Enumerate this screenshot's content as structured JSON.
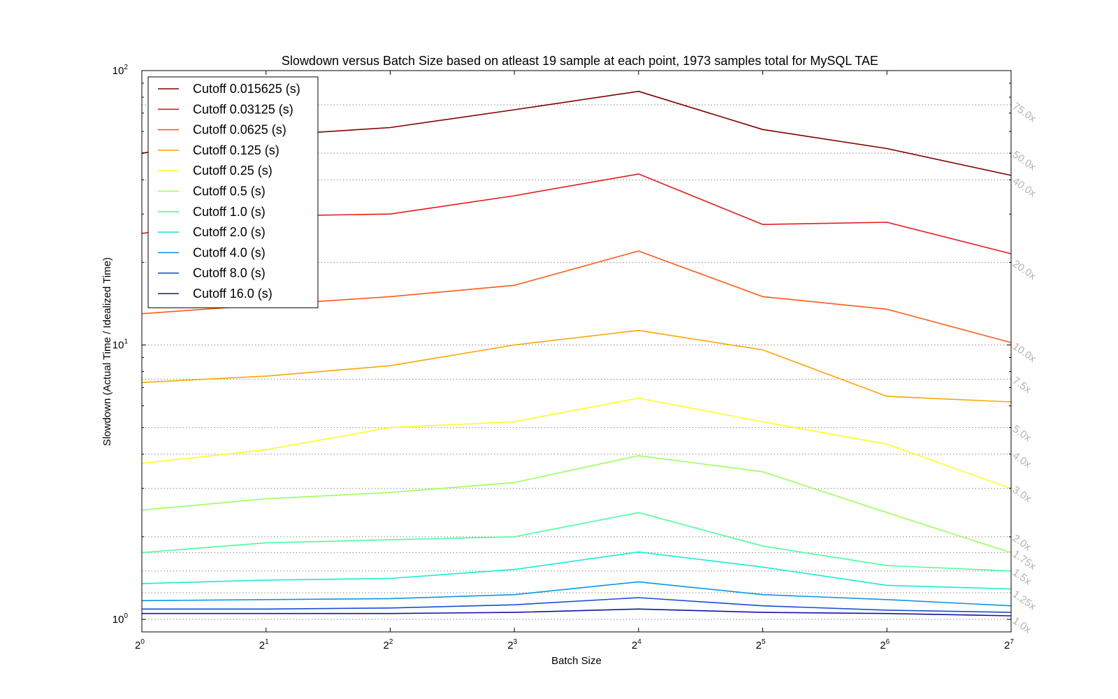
{
  "chart_data": {
    "type": "line",
    "title": "Slowdown versus Batch Size based on atleast 19 sample at each point, 1973 samples total for MySQL TAE",
    "xlabel": "Batch Size",
    "ylabel": "Slowdown (Actual Time / Idealized Time)",
    "x_scale": "log2",
    "y_scale": "log10",
    "xlim": [
      1,
      128
    ],
    "ylim": [
      0.9,
      100
    ],
    "x": [
      1,
      2,
      4,
      8,
      16,
      32,
      64,
      128
    ],
    "x_ticks": [
      {
        "value": 1,
        "base": "2",
        "exp": "0"
      },
      {
        "value": 2,
        "base": "2",
        "exp": "1"
      },
      {
        "value": 4,
        "base": "2",
        "exp": "2"
      },
      {
        "value": 8,
        "base": "2",
        "exp": "3"
      },
      {
        "value": 16,
        "base": "2",
        "exp": "4"
      },
      {
        "value": 32,
        "base": "2",
        "exp": "5"
      },
      {
        "value": 64,
        "base": "2",
        "exp": "6"
      },
      {
        "value": 128,
        "base": "2",
        "exp": "7"
      }
    ],
    "y_ticks": [
      {
        "value": 1,
        "base": "10",
        "exp": "0"
      },
      {
        "value": 10,
        "base": "10",
        "exp": "1"
      },
      {
        "value": 100,
        "base": "10",
        "exp": "2"
      }
    ],
    "reference_lines": [
      {
        "value": 75,
        "label": "75.0x"
      },
      {
        "value": 50,
        "label": "50.0x"
      },
      {
        "value": 40,
        "label": "40.0x"
      },
      {
        "value": 20,
        "label": "20.0x"
      },
      {
        "value": 10,
        "label": "10.0x"
      },
      {
        "value": 7.5,
        "label": "7.5x"
      },
      {
        "value": 5,
        "label": "5.0x"
      },
      {
        "value": 4,
        "label": "4.0x"
      },
      {
        "value": 3,
        "label": "3.0x"
      },
      {
        "value": 2,
        "label": "2.0x"
      },
      {
        "value": 1.75,
        "label": "1.75x"
      },
      {
        "value": 1.5,
        "label": "1.5x"
      },
      {
        "value": 1.25,
        "label": "1.25x"
      },
      {
        "value": 1.0,
        "label": "1.0x"
      }
    ],
    "legend_position": "top-left",
    "series": [
      {
        "name": "Cutoff 0.015625 (s)",
        "color": "#800000",
        "values": [
          50,
          58,
          62,
          72,
          84,
          61,
          52,
          41.5
        ]
      },
      {
        "name": "Cutoff 0.03125 (s)",
        "color": "#e41a1a",
        "values": [
          25.5,
          29.5,
          30,
          35,
          42,
          27.5,
          28,
          21.5
        ]
      },
      {
        "name": "Cutoff 0.0625 (s)",
        "color": "#ff5a14",
        "values": [
          13,
          14,
          15,
          16.5,
          22,
          15,
          13.5,
          10.2
        ]
      },
      {
        "name": "Cutoff 0.125 (s)",
        "color": "#ffa500",
        "values": [
          7.3,
          7.7,
          8.4,
          10,
          11.3,
          9.6,
          6.5,
          6.2
        ]
      },
      {
        "name": "Cutoff 0.25 (s)",
        "color": "#ffff1e",
        "values": [
          3.7,
          4.15,
          5,
          5.25,
          6.4,
          5.25,
          4.35,
          3.0
        ]
      },
      {
        "name": "Cutoff 0.5 (s)",
        "color": "#9cff5a",
        "values": [
          2.5,
          2.75,
          2.9,
          3.15,
          3.95,
          3.45,
          2.45,
          1.75
        ]
      },
      {
        "name": "Cutoff 1.0 (s)",
        "color": "#48ff9e",
        "values": [
          1.75,
          1.9,
          1.95,
          2.0,
          2.45,
          1.85,
          1.57,
          1.5
        ]
      },
      {
        "name": "Cutoff 2.0 (s)",
        "color": "#18ebd6",
        "values": [
          1.35,
          1.39,
          1.41,
          1.52,
          1.76,
          1.55,
          1.33,
          1.29
        ]
      },
      {
        "name": "Cutoff 4.0 (s)",
        "color": "#0a96e6",
        "values": [
          1.17,
          1.18,
          1.19,
          1.23,
          1.37,
          1.23,
          1.18,
          1.12
        ]
      },
      {
        "name": "Cutoff 8.0 (s)",
        "color": "#1450d2",
        "values": [
          1.09,
          1.09,
          1.1,
          1.13,
          1.2,
          1.12,
          1.08,
          1.06
        ]
      },
      {
        "name": "Cutoff 16.0 (s)",
        "color": "#1414a0",
        "values": [
          1.05,
          1.05,
          1.05,
          1.06,
          1.09,
          1.06,
          1.05,
          1.03
        ]
      }
    ]
  }
}
